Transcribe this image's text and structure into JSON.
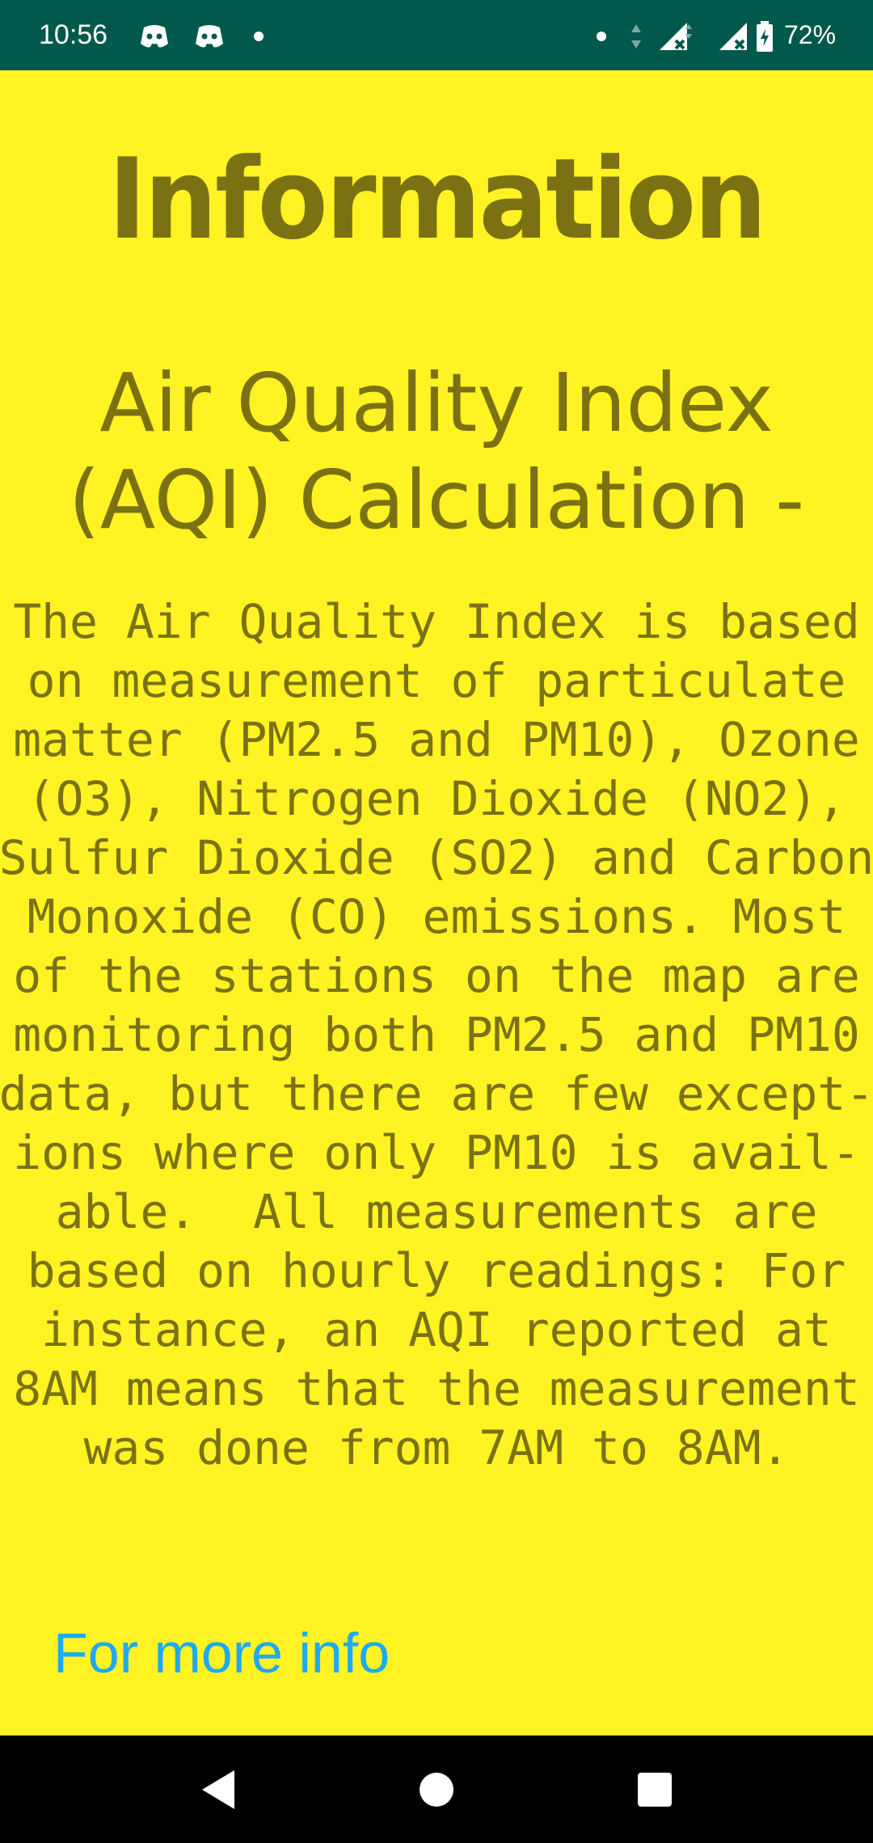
{
  "status_bar": {
    "time": "10:56",
    "battery": "72%",
    "icons": [
      "discord-icon",
      "discord-icon",
      "notification-dot-icon",
      "notification-dot-icon",
      "data-arrows-icon",
      "signal-no-data-icon",
      "signal-no-data-icon",
      "battery-charging-icon"
    ]
  },
  "page": {
    "title": "Information",
    "heading_line1": "Air Quality Index",
    "heading_line2": "(AQI) Calculation -",
    "body_text": "The Air Quality Index is based\non measurement of particulate\nmatter (PM2.5 and PM10), Ozone\n(O3), Nitrogen Dioxide (NO2),\nSulfur Dioxide (SO2) and Carbon\nMonoxide (CO) emissions. Most\nof the stations on the map are\nmonitoring both PM2.5 and PM10\ndata, but there are few except-\nions where only PM10 is avail-\nable.  All measurements are\nbased on hourly readings: For\ninstance, an AQI reported at\n8AM means that the measurement\nwas done from 7AM to 8AM.",
    "link_label": "For more info"
  },
  "nav_bar": {
    "buttons": [
      "back-icon",
      "home-icon",
      "recents-icon"
    ]
  },
  "colors": {
    "background": "#fff323",
    "text": "#7a7212",
    "link": "#1eaaf0",
    "status_bar": "#00594c"
  }
}
